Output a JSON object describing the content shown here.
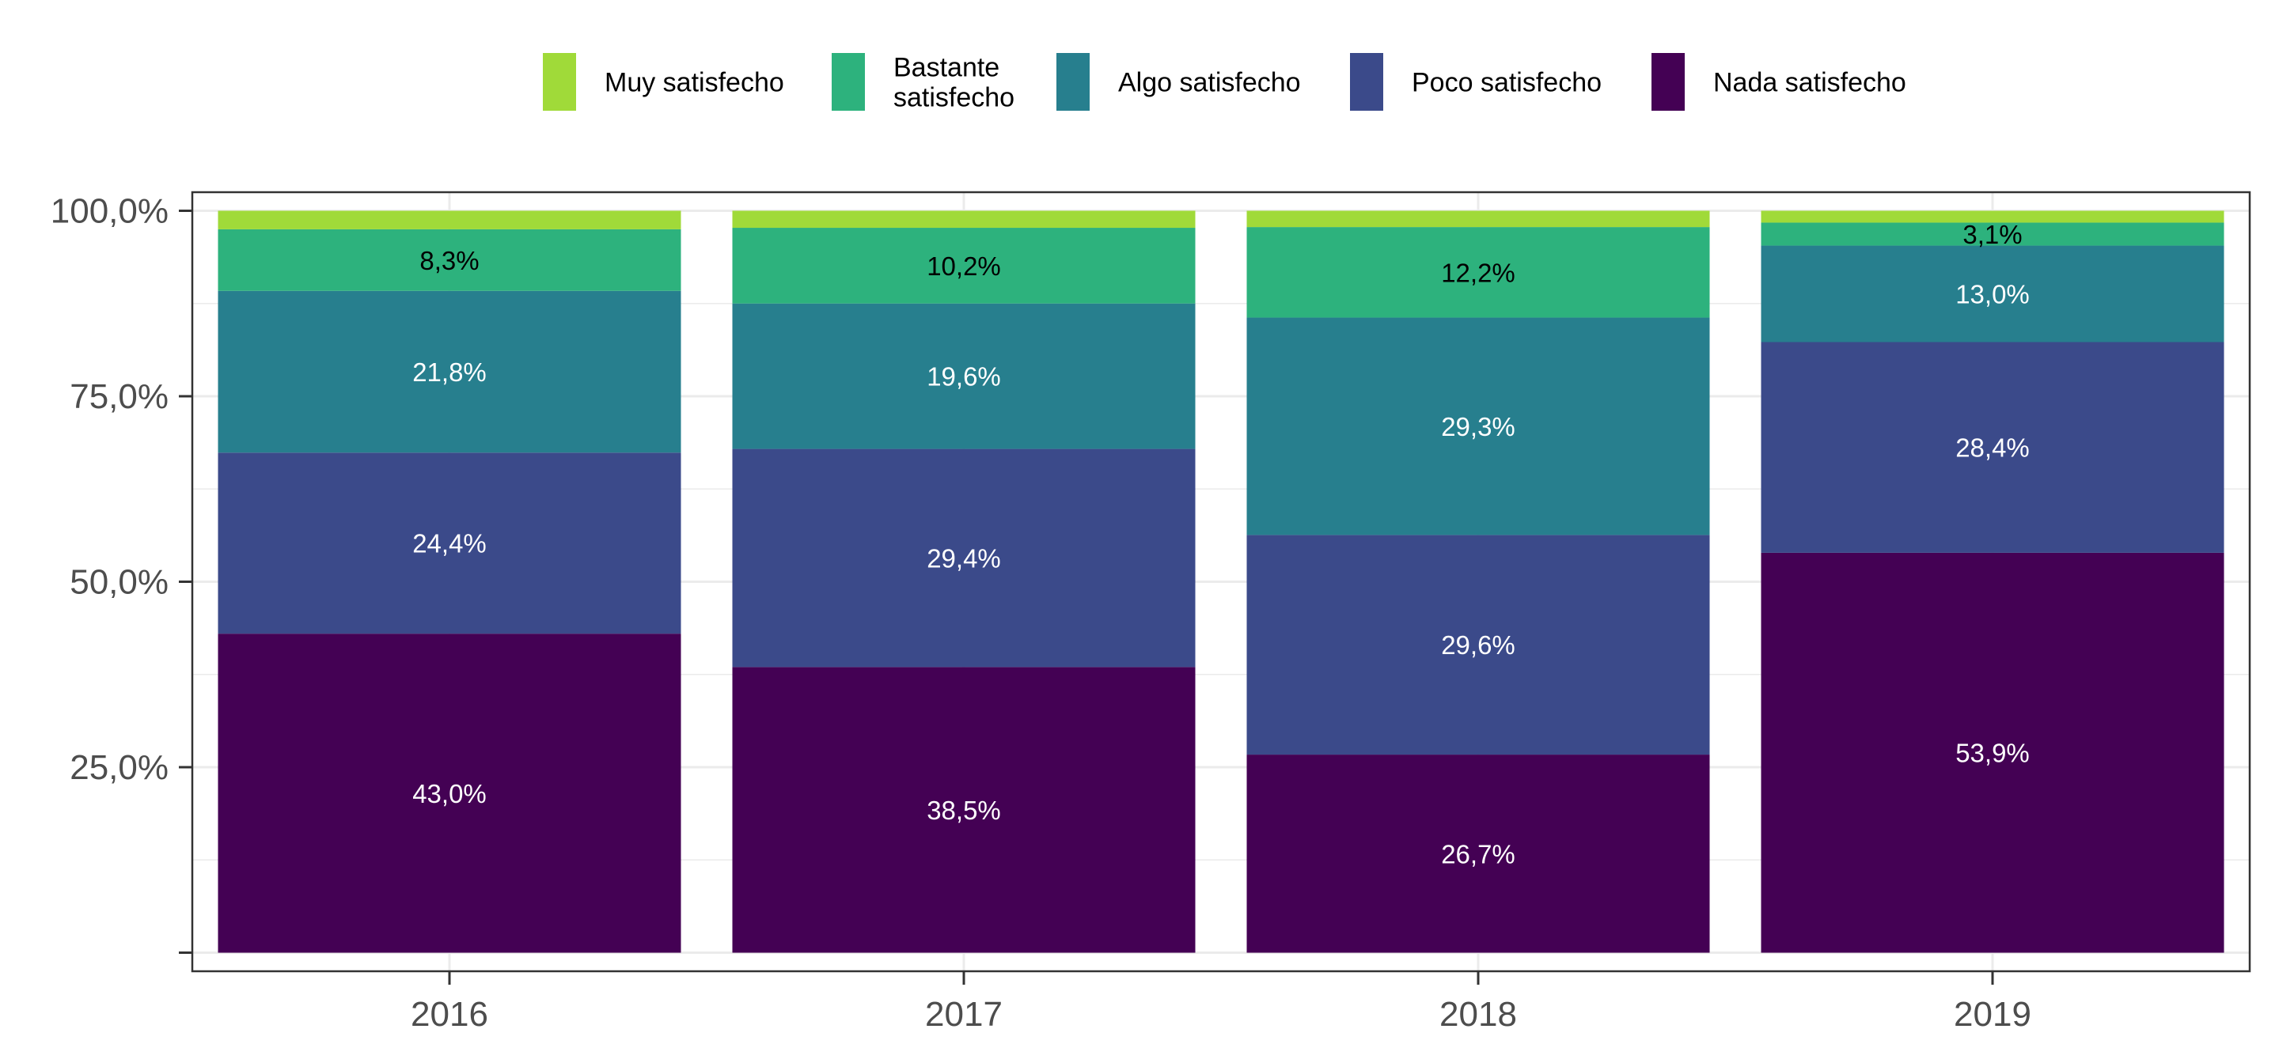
{
  "chart_data": {
    "type": "bar",
    "stacked": true,
    "categories": [
      "2016",
      "2017",
      "2018",
      "2019"
    ],
    "series": [
      {
        "name": "Nada satisfecho",
        "color": "#440154",
        "values": [
          43.0,
          38.5,
          26.7,
          53.9
        ],
        "labels": [
          "43,0%",
          "38,5%",
          "26,7%",
          "53,9%"
        ]
      },
      {
        "name": "Poco satisfecho",
        "color": "#3B4A8A",
        "values": [
          24.4,
          29.4,
          29.6,
          28.4
        ],
        "labels": [
          "24,4%",
          "29,4%",
          "29,6%",
          "28,4%"
        ]
      },
      {
        "name": "Algo satisfecho",
        "color": "#277F8E",
        "values": [
          21.8,
          19.6,
          29.3,
          13.0
        ],
        "labels": [
          "21,8%",
          "19,6%",
          "29,3%",
          "13,0%"
        ]
      },
      {
        "name": "Bastante satisfecho",
        "color": "#2DB27D",
        "values": [
          8.3,
          10.2,
          12.2,
          3.1
        ],
        "labels": [
          "8,3%",
          "10,2%",
          "12,2%",
          "3,1%"
        ]
      },
      {
        "name": "Muy satisfecho",
        "color": "#A0DA39",
        "values": [
          2.5,
          2.3,
          2.2,
          1.6
        ],
        "labels": [
          "",
          "",
          "",
          ""
        ]
      }
    ],
    "legend": {
      "position": "top",
      "order": [
        "Muy satisfecho",
        "Bastante satisfecho",
        "Algo satisfecho",
        "Poco satisfecho",
        "Nada satisfecho"
      ],
      "entries": [
        {
          "lines": [
            "Muy satisfecho"
          ]
        },
        {
          "lines": [
            "Bastante",
            "satisfecho"
          ]
        },
        {
          "lines": [
            "Algo satisfecho"
          ]
        },
        {
          "lines": [
            "Poco satisfecho"
          ]
        },
        {
          "lines": [
            "Nada satisfecho"
          ]
        }
      ]
    },
    "yticks": [
      0,
      25,
      50,
      75,
      100
    ],
    "ytick_labels": [
      "",
      "25,0%",
      "50,0%",
      "75,0%",
      "100,0%"
    ],
    "ylim": [
      -2.5,
      102.5
    ],
    "title": "",
    "xlabel": "",
    "ylabel": "",
    "grid": true,
    "label_colors": {
      "dark_segment": "#ffffff",
      "light_segment": "#000000"
    }
  }
}
